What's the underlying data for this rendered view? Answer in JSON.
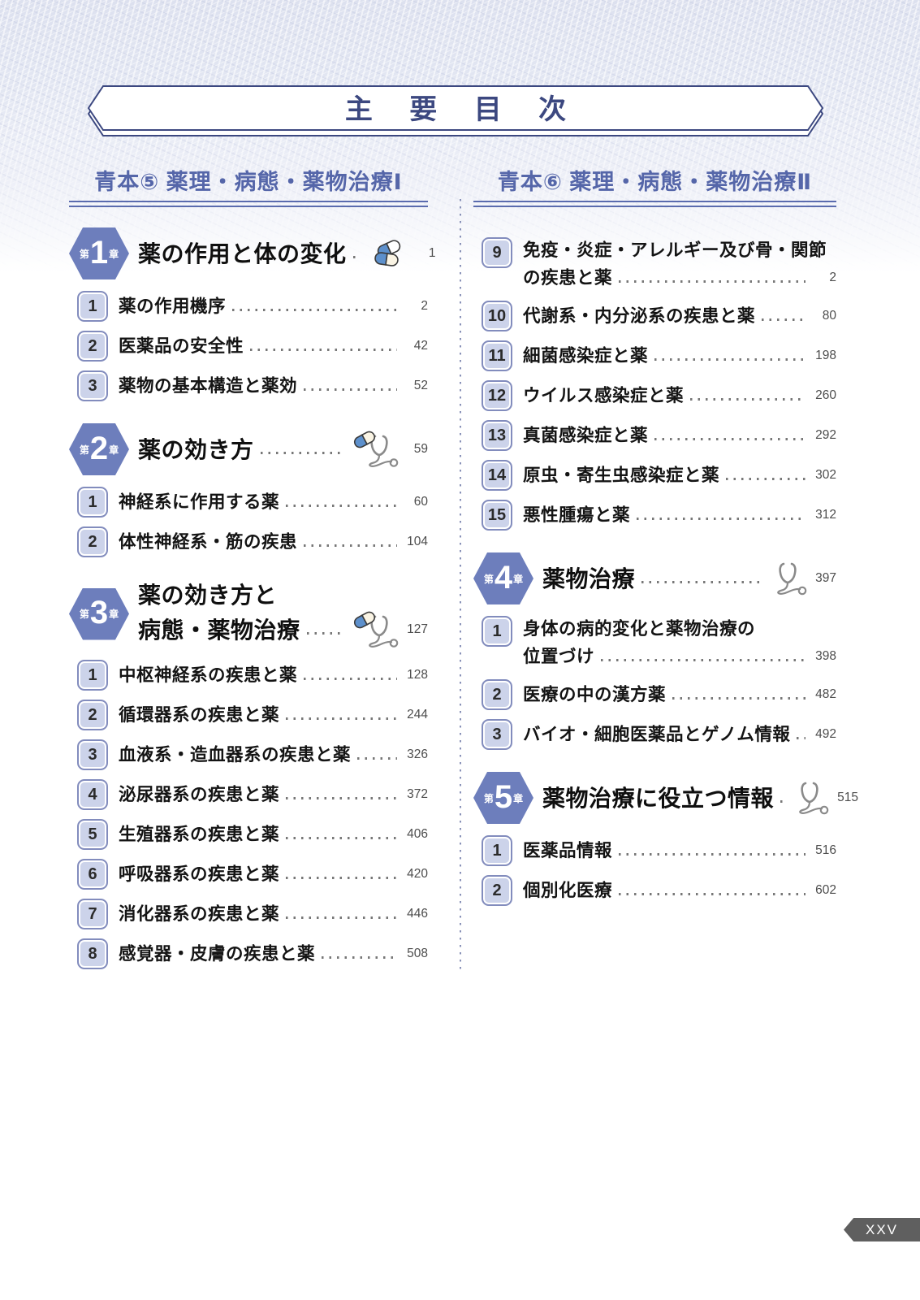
{
  "page": {
    "title": "主 要 目 次",
    "page_label": "XXV"
  },
  "colors": {
    "accent_blue": "#5a6bae",
    "hexagon_blue": "#6d7ebc",
    "badge_fill": "#ccd3ea",
    "badge_border": "#828cbd",
    "banner_border": "#3c4880",
    "folio_gray": "#5f5f5f",
    "capsule_blue": "#5d90cc",
    "capsule_cream": "#faf4e4"
  },
  "columns": [
    {
      "header": "青本⑤ 薬理・病態・薬物治療Ⅰ",
      "blocks": [
        {
          "type": "chapter",
          "prefix": "第",
          "num": "1",
          "suffix": "章",
          "title": "薬の作用と体の変化",
          "icon": "pills-icon",
          "page": "1"
        },
        {
          "type": "section",
          "num": "1",
          "title": "薬の作用機序",
          "page": "2"
        },
        {
          "type": "section",
          "num": "2",
          "title": "医薬品の安全性",
          "page": "42"
        },
        {
          "type": "section",
          "num": "3",
          "title": "薬物の基本構造と薬効",
          "page": "52"
        },
        {
          "type": "chapter",
          "prefix": "第",
          "num": "2",
          "suffix": "章",
          "title": "薬の効き方",
          "icon": "capsule-stethoscope-icon",
          "page": "59"
        },
        {
          "type": "section",
          "num": "1",
          "title": "神経系に作用する薬",
          "page": "60"
        },
        {
          "type": "section",
          "num": "2",
          "title": "体性神経系・筋の疾患",
          "page": "104"
        },
        {
          "type": "chapter",
          "prefix": "第",
          "num": "3",
          "suffix": "章",
          "title": "薬の効き方と",
          "title2": "病態・薬物治療",
          "icon": "capsule-stethoscope-icon",
          "page": "127"
        },
        {
          "type": "section",
          "num": "1",
          "title": "中枢神経系の疾患と薬",
          "page": "128"
        },
        {
          "type": "section",
          "num": "2",
          "title": "循環器系の疾患と薬",
          "page": "244"
        },
        {
          "type": "section",
          "num": "3",
          "title": "血液系・造血器系の疾患と薬",
          "page": "326"
        },
        {
          "type": "section",
          "num": "4",
          "title": "泌尿器系の疾患と薬",
          "page": "372"
        },
        {
          "type": "section",
          "num": "5",
          "title": "生殖器系の疾患と薬",
          "page": "406"
        },
        {
          "type": "section",
          "num": "6",
          "title": "呼吸器系の疾患と薬",
          "page": "420"
        },
        {
          "type": "section",
          "num": "7",
          "title": "消化器系の疾患と薬",
          "page": "446"
        },
        {
          "type": "section",
          "num": "8",
          "title": "感覚器・皮膚の疾患と薬",
          "page": "508"
        }
      ]
    },
    {
      "header": "青本⑥ 薬理・病態・薬物治療Ⅱ",
      "blocks": [
        {
          "type": "section",
          "num": "9",
          "title": "免疫・炎症・アレルギー及び骨・関節",
          "title2": "の疾患と薬",
          "page": "2"
        },
        {
          "type": "section",
          "num": "10",
          "title": "代謝系・内分泌系の疾患と薬",
          "page": "80"
        },
        {
          "type": "section",
          "num": "11",
          "title": "細菌感染症と薬",
          "page": "198"
        },
        {
          "type": "section",
          "num": "12",
          "title": "ウイルス感染症と薬",
          "page": "260"
        },
        {
          "type": "section",
          "num": "13",
          "title": "真菌感染症と薬",
          "page": "292"
        },
        {
          "type": "section",
          "num": "14",
          "title": "原虫・寄生虫感染症と薬",
          "page": "302"
        },
        {
          "type": "section",
          "num": "15",
          "title": "悪性腫瘍と薬",
          "page": "312"
        },
        {
          "type": "chapter",
          "prefix": "第",
          "num": "4",
          "suffix": "章",
          "title": "薬物治療",
          "icon": "stethoscope-icon",
          "page": "397"
        },
        {
          "type": "section",
          "num": "1",
          "title": "身体の病的変化と薬物治療の",
          "title2": "位置づけ",
          "page": "398"
        },
        {
          "type": "section",
          "num": "2",
          "title": "医療の中の漢方薬",
          "page": "482"
        },
        {
          "type": "section",
          "num": "3",
          "title": "バイオ・細胞医薬品とゲノム情報",
          "page": "492"
        },
        {
          "type": "chapter",
          "prefix": "第",
          "num": "5",
          "suffix": "章",
          "title": "薬物治療に役立つ情報",
          "icon": "stethoscope-icon",
          "page": "515"
        },
        {
          "type": "section",
          "num": "1",
          "title": "医薬品情報",
          "page": "516"
        },
        {
          "type": "section",
          "num": "2",
          "title": "個別化医療",
          "page": "602"
        }
      ]
    }
  ]
}
